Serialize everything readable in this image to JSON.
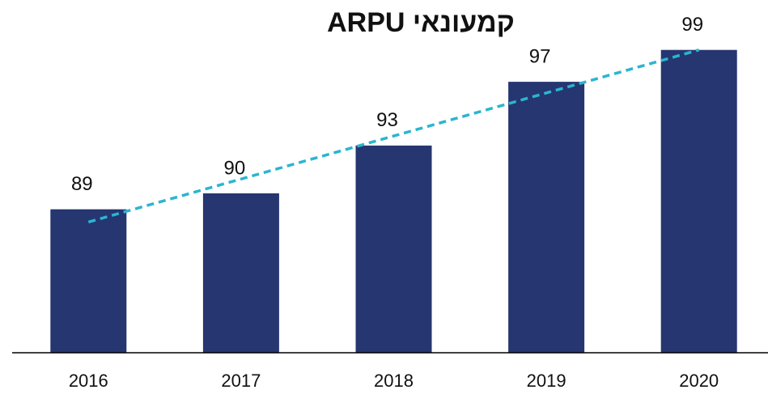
{
  "chart_data": {
    "type": "bar",
    "title": "ARPU קמעונאי",
    "categories": [
      "2016",
      "2017",
      "2018",
      "2019",
      "2020"
    ],
    "values": [
      89,
      90,
      93,
      97,
      99
    ],
    "color": "#253670",
    "ylim": [
      80,
      100
    ],
    "trendline": true,
    "trendline_color": "#2bb5d1"
  }
}
